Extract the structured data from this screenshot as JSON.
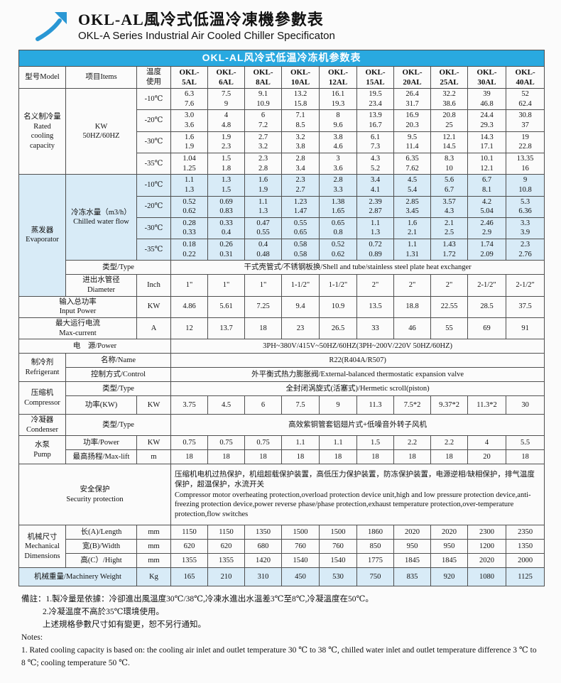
{
  "header": {
    "title_zh": "OKL-AL風冷式低溫冷凍機參數表",
    "title_en": "OKL-A Series Industrial Air Cooled Chiller Specificaton"
  },
  "colors": {
    "accent": "#29a9e0",
    "band": "#d8ebf7"
  },
  "table": {
    "caption": "OKL-AL风冷式低温冷冻机参数表",
    "col_model": "型号Model",
    "col_items": "项目Items",
    "col_temp": "温度\n使用",
    "models": [
      [
        "OKL-",
        "5AL"
      ],
      [
        "OKL-",
        "6AL"
      ],
      [
        "OKL-",
        "8AL"
      ],
      [
        "OKL-",
        "10AL"
      ],
      [
        "OKL-",
        "12AL"
      ],
      [
        "OKL-",
        "15AL"
      ],
      [
        "OKL-",
        "20AL"
      ],
      [
        "OKL-",
        "25AL"
      ],
      [
        "OKL-",
        "30AL"
      ],
      [
        "OKL-",
        "40AL"
      ]
    ],
    "cooling": {
      "label": "名义制冷量\nRated\ncooling\ncapacity",
      "unit": "KW\n50HZ/60HZ",
      "rows": [
        {
          "temp": "-10℃",
          "values": [
            [
              "6.3",
              "7.6"
            ],
            [
              "7.5",
              "9"
            ],
            [
              "9.1",
              "10.9"
            ],
            [
              "13.2",
              "15.8"
            ],
            [
              "16.1",
              "19.3"
            ],
            [
              "19.5",
              "23.4"
            ],
            [
              "26.4",
              "31.7"
            ],
            [
              "32.2",
              "38.6"
            ],
            [
              "39",
              "46.8"
            ],
            [
              "52",
              "62.4"
            ]
          ]
        },
        {
          "temp": "-20℃",
          "values": [
            [
              "3.0",
              "3.6"
            ],
            [
              "4",
              "4.8"
            ],
            [
              "6",
              "7.2"
            ],
            [
              "7.1",
              "8.5"
            ],
            [
              "8",
              "9.6"
            ],
            [
              "13.9",
              "16.7"
            ],
            [
              "16.9",
              "20.3"
            ],
            [
              "20.8",
              "25"
            ],
            [
              "24.4",
              "29.3"
            ],
            [
              "30.8",
              "37"
            ]
          ]
        },
        {
          "temp": "-30℃",
          "values": [
            [
              "1.6",
              "1.9"
            ],
            [
              "1.9",
              "2.3"
            ],
            [
              "2.7",
              "3.2"
            ],
            [
              "3.2",
              "3.8"
            ],
            [
              "3.8",
              "4.6"
            ],
            [
              "6.1",
              "7.3"
            ],
            [
              "9.5",
              "11.4"
            ],
            [
              "12.1",
              "14.5"
            ],
            [
              "14.3",
              "17.1"
            ],
            [
              "19",
              "22.8"
            ]
          ]
        },
        {
          "temp": "-35℃",
          "values": [
            [
              "1.04",
              "1.25"
            ],
            [
              "1.5",
              "1.8"
            ],
            [
              "2.3",
              "2.8"
            ],
            [
              "2.8",
              "3.4"
            ],
            [
              "3",
              "3.6"
            ],
            [
              "4.3",
              "5.2"
            ],
            [
              "6.35",
              "7.62"
            ],
            [
              "8.3",
              "10"
            ],
            [
              "10.1",
              "12.1"
            ],
            [
              "13.35",
              "16"
            ]
          ]
        }
      ]
    },
    "evaporator": {
      "label": "蒸发器\nEvaporator",
      "flow_label": "冷冻水量（m3/h）\nChilled water flow",
      "flow_rows": [
        {
          "temp": "-10℃",
          "values": [
            [
              "1.1",
              "1.3"
            ],
            [
              "1.3",
              "1.5"
            ],
            [
              "1.6",
              "1.9"
            ],
            [
              "2.3",
              "2.7"
            ],
            [
              "2.8",
              "3.3"
            ],
            [
              "3.4",
              "4.1"
            ],
            [
              "4.5",
              "5.4"
            ],
            [
              "5.6",
              "6.7"
            ],
            [
              "6.7",
              "8.1"
            ],
            [
              "9",
              "10.8"
            ]
          ]
        },
        {
          "temp": "-20℃",
          "values": [
            [
              "0.52",
              "0.62"
            ],
            [
              "0.69",
              "0.83"
            ],
            [
              "1.1",
              "1.3"
            ],
            [
              "1.23",
              "1.47"
            ],
            [
              "1.38",
              "1.65"
            ],
            [
              "2.39",
              "2.87"
            ],
            [
              "2.85",
              "3.45"
            ],
            [
              "3.57",
              "4.3"
            ],
            [
              "4.2",
              "5.04"
            ],
            [
              "5.3",
              "6.36"
            ]
          ]
        },
        {
          "temp": "-30℃",
          "values": [
            [
              "0.28",
              "0.33"
            ],
            [
              "0.33",
              "0.4"
            ],
            [
              "0.47",
              "0.55"
            ],
            [
              "0.55",
              "0.65"
            ],
            [
              "0.65",
              "0.8"
            ],
            [
              "1.1",
              "1.3"
            ],
            [
              "1.6",
              "2.1"
            ],
            [
              "2.1",
              "2.5"
            ],
            [
              "2.46",
              "2.9"
            ],
            [
              "3.3",
              "3.9"
            ]
          ]
        },
        {
          "temp": "-35℃",
          "values": [
            [
              "0.18",
              "0.22"
            ],
            [
              "0.26",
              "0.31"
            ],
            [
              "0.4",
              "0.48"
            ],
            [
              "0.58",
              "0.58"
            ],
            [
              "0.52",
              "0.62"
            ],
            [
              "0.72",
              "0.89"
            ],
            [
              "1.1",
              "1.31"
            ],
            [
              "1.43",
              "1.72"
            ],
            [
              "1.74",
              "2.09"
            ],
            [
              "2.3",
              "2.76"
            ]
          ]
        }
      ],
      "type_label": "类型/Type",
      "type_value": "干式壳管式/不锈钢板换/Shell and tube/stainless steel plate heat exchanger",
      "diameter_label": "进出水管径\nDiameter",
      "diameter_unit": "Inch",
      "diameter_values": [
        "1\"",
        "1\"",
        "1\"",
        "1-1/2\"",
        "1-1/2\"",
        "2\"",
        "2\"",
        "2\"",
        "2-1/2\"",
        "2-1/2\""
      ]
    },
    "input_power": {
      "label": "输入总功率\nInput Power",
      "unit": "KW",
      "values": [
        "4.86",
        "5.61",
        "7.25",
        "9.4",
        "10.9",
        "13.5",
        "18.8",
        "22.55",
        "28.5",
        "37.5"
      ]
    },
    "max_current": {
      "label": "最大运行电流\nMax-current",
      "unit": "A",
      "values": [
        "12",
        "13.7",
        "18",
        "23",
        "26.5",
        "33",
        "46",
        "55",
        "69",
        "91"
      ]
    },
    "power_supply": {
      "label": "电　源/Power",
      "value": "3PH~380V/415V~50HZ/60HZ(3PH~200V/220V  50HZ/60HZ)"
    },
    "refrigerant": {
      "label": "制冷剂\nRefrigerant",
      "name_label": "名称/Name",
      "name_value": "R22(R404A/R507)",
      "control_label": "控制方式/Control",
      "control_value": "外平衡式热力膨胀阀/External-balanced thermostatic expansion valve"
    },
    "compressor": {
      "label": "压缩机\nCompressor",
      "type_label": "类型/Type",
      "type_value": "全封闭涡旋式(活塞式)/Hermetic scroll(piston)",
      "power_label": "功率(KW)",
      "power_unit": "KW",
      "power_values": [
        "3.75",
        "4.5",
        "6",
        "7.5",
        "9",
        "11.3",
        "7.5*2",
        "9.37*2",
        "11.3*2",
        "30"
      ]
    },
    "condenser": {
      "label": "冷凝器\nCondenser",
      "type_label": "类型/Type",
      "type_value": "高效紫铜管套铝翅片式+低噪音外转子风机"
    },
    "pump": {
      "label": "水泵\nPump",
      "power_label": "功率/Power",
      "power_unit": "KW",
      "power_values": [
        "0.75",
        "0.75",
        "0.75",
        "1.1",
        "1.1",
        "1.5",
        "2.2",
        "2.2",
        "4",
        "5.5"
      ],
      "lift_label": "最高扬程/Max-lift",
      "lift_unit": "m",
      "lift_values": [
        "18",
        "18",
        "18",
        "18",
        "18",
        "18",
        "18",
        "18",
        "20",
        "18"
      ]
    },
    "security": {
      "label": "安全保护\nSecurity protection",
      "zh": "压缩机电机过热保护，机组超载保护装置，高低压力保护装置，防冻保护装置，电源逆相/缺相保护，排气温度保护，超温保护，水流开关",
      "en": "Compressor motor overheating protection,overload protection device unit,high and low pressure protection device,anti-freezing protection device,power reverse phase/phase protection,exhaust temperature protection,over-temperature protection,flow switches"
    },
    "dimensions": {
      "label": "机械尺寸\nMechanical\nDimensions",
      "rows": [
        {
          "name": "长(A)/Length",
          "unit": "mm",
          "values": [
            "1150",
            "1150",
            "1350",
            "1500",
            "1500",
            "1860",
            "2020",
            "2020",
            "2300",
            "2350"
          ]
        },
        {
          "name": "宽(B)/Width",
          "unit": "mm",
          "values": [
            "620",
            "620",
            "680",
            "760",
            "760",
            "850",
            "950",
            "950",
            "1200",
            "1350"
          ]
        },
        {
          "name": "高(C）/Hight",
          "unit": "mm",
          "values": [
            "1355",
            "1355",
            "1420",
            "1540",
            "1540",
            "1775",
            "1845",
            "1845",
            "2020",
            "2000"
          ]
        }
      ]
    },
    "weight": {
      "label": "机械重量/Machinery Weight",
      "unit": "Kg",
      "values": [
        "165",
        "210",
        "310",
        "450",
        "530",
        "750",
        "835",
        "920",
        "1080",
        "1125"
      ]
    }
  },
  "notes": {
    "zh": [
      "備註：1.製冷量是依據：冷卻進出風溫度30℃/38℃,冷凍水進出水溫差3℃至8℃,冷凝溫度在50℃。",
      "2.冷凝温度不高於35℃環境使用。",
      "上述規格參數尺寸如有變更，恕不另行通知。"
    ],
    "en_title": "Notes:",
    "en": "1. Rated cooling capacity is based on: the cooling air inlet and outlet temperature 30 ℃ to 38 ℃, chilled water inlet and outlet temperature difference 3 ℃ to 8 ℃; cooling temperature 50 ℃."
  }
}
